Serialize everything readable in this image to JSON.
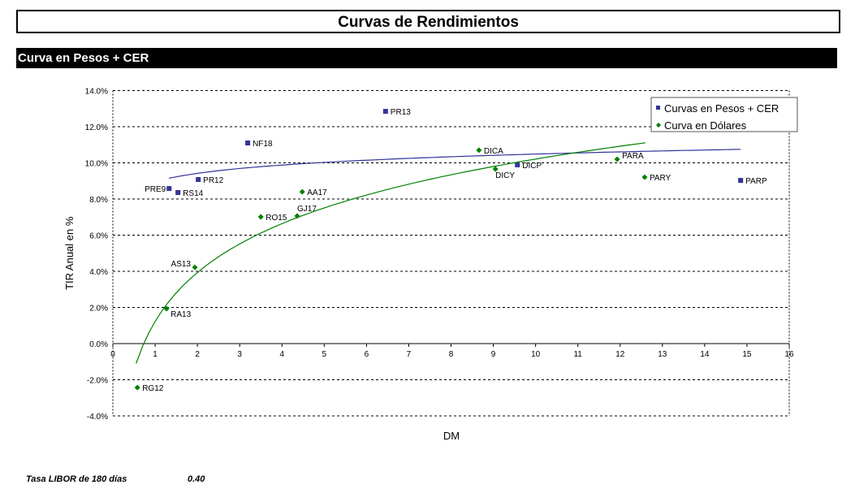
{
  "header": {
    "title": "Curvas de Rendimientos",
    "section": "Curva en Pesos + CER"
  },
  "footer": {
    "label": "Tasa LIBOR de 180 días",
    "value": "0.40"
  },
  "chart_data": {
    "type": "scatter",
    "xlabel": "DM",
    "ylabel": "TIR Anual en %",
    "xlim": [
      0,
      16
    ],
    "ylim": [
      -4,
      14
    ],
    "xticks": [
      "0",
      "1",
      "2",
      "3",
      "4",
      "5",
      "6",
      "7",
      "8",
      "9",
      "10",
      "11",
      "12",
      "13",
      "14",
      "15",
      "16"
    ],
    "yticks": [
      "-4.0%",
      "-2.0%",
      "0.0%",
      "2.0%",
      "4.0%",
      "6.0%",
      "8.0%",
      "10.0%",
      "12.0%",
      "14.0%"
    ],
    "grid": "horizontal dashed",
    "legend": "top-right",
    "series": [
      {
        "name": "Curvas en Pesos + CER",
        "color": "#33339a",
        "marker": "square",
        "trend_color": "#33339a",
        "trendline": {
          "type": "logarithmic",
          "x_range": [
            1.33,
            14.85
          ]
        },
        "points": [
          {
            "label": "PR13",
            "x": 6.45,
            "y": 12.85
          },
          {
            "label": "NF18",
            "x": 3.19,
            "y": 11.1
          },
          {
            "label": "PR12",
            "x": 2.02,
            "y": 9.08
          },
          {
            "label": "PRE9",
            "x": 1.33,
            "y": 8.58
          },
          {
            "label": "RS14",
            "x": 1.54,
            "y": 8.36
          },
          {
            "label": "DICP",
            "x": 9.57,
            "y": 9.89
          },
          {
            "label": "PARP",
            "x": 14.85,
            "y": 9.03
          }
        ]
      },
      {
        "name": "Curva en Dólares",
        "color": "#008000",
        "marker": "diamond",
        "trend_color": "#008000",
        "trendline": {
          "type": "logarithmic",
          "x_range": [
            0.55,
            12.6
          ]
        },
        "points": [
          {
            "label": "DICA",
            "x": 8.66,
            "y": 10.7
          },
          {
            "label": "DICY",
            "x": 9.05,
            "y": 9.66
          },
          {
            "label": "PARA",
            "x": 11.93,
            "y": 10.2
          },
          {
            "label": "PARY",
            "x": 12.58,
            "y": 9.21
          },
          {
            "label": "AA17",
            "x": 4.48,
            "y": 8.4
          },
          {
            "label": "GJ17",
            "x": 4.36,
            "y": 7.06
          },
          {
            "label": "RO15",
            "x": 3.5,
            "y": 7.01
          },
          {
            "label": "AS13",
            "x": 1.94,
            "y": 4.22
          },
          {
            "label": "RA13",
            "x": 1.27,
            "y": 1.93
          },
          {
            "label": "RG12",
            "x": 0.58,
            "y": -2.43
          }
        ]
      }
    ]
  }
}
